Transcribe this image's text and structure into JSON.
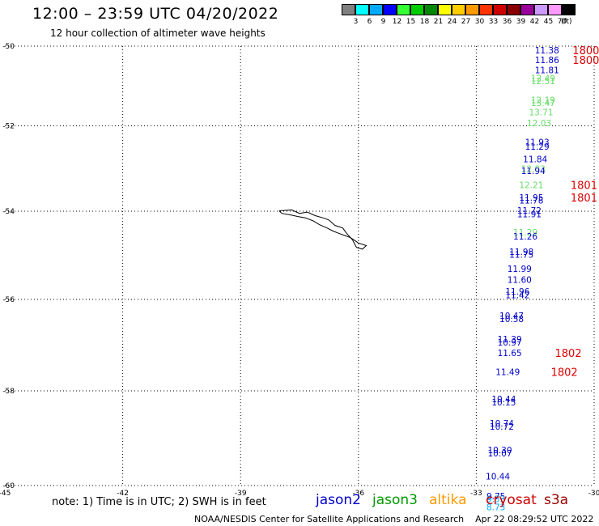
{
  "header": {
    "title": "12:00 – 23:59 UTC 04/20/2022",
    "subtitle": "12 hour collection of altimeter wave heights"
  },
  "legend": {
    "swatches": [
      {
        "label": "3",
        "color": "#808080"
      },
      {
        "label": "6",
        "color": "#00ffff"
      },
      {
        "label": "9",
        "color": "#00aaff"
      },
      {
        "label": "12",
        "color": "#0000ff"
      },
      {
        "label": "15",
        "color": "#33ff33"
      },
      {
        "label": "18",
        "color": "#00cc00"
      },
      {
        "label": "21",
        "color": "#008800"
      },
      {
        "label": "24",
        "color": "#ffff00"
      },
      {
        "label": "27",
        "color": "#ffcc00"
      },
      {
        "label": "30",
        "color": "#ff9900"
      },
      {
        "label": "33",
        "color": "#ff3300"
      },
      {
        "label": "36",
        "color": "#cc0000"
      },
      {
        "label": "39",
        "color": "#880000"
      },
      {
        "label": "42",
        "color": "#990099"
      },
      {
        "label": "45",
        "color": "#cc99ff"
      },
      {
        "label": "70",
        "color": "#ff99ff"
      },
      {
        "label": "",
        "color": "#000000"
      }
    ],
    "unit": "(ft)"
  },
  "footer": {
    "note": "note: 1) Time is in UTC; 2) SWH is in feet",
    "satellites": [
      {
        "name": "jason2",
        "color": "#0000cc"
      },
      {
        "name": "jason3",
        "color": "#009900"
      },
      {
        "name": "altika",
        "color": "#ff9900"
      },
      {
        "name": "cryosat",
        "color": "#cc0000"
      },
      {
        "name": "s3a",
        "color": "#990000"
      }
    ],
    "credit": "NOAA/NESDIS Center for Satellite Applications and Research    Apr 22 08:29:52 UTC 2022"
  },
  "chart_data": {
    "type": "scatter",
    "xlim": [
      -45,
      -30
    ],
    "ylim": [
      -60,
      -50
    ],
    "x_ticks": [
      -45,
      -42,
      -39,
      -36,
      -33,
      -30
    ],
    "y_ticks": [
      -50,
      -52,
      -54,
      -56,
      -58,
      -60
    ],
    "x_tick_labels": [
      "-45",
      "-42",
      "-39",
      "-36",
      "-33",
      "-30"
    ],
    "y_tick_labels": [
      "-50",
      "-52",
      "-54",
      "-56",
      "-58",
      "-60"
    ],
    "grid": true,
    "points": [
      {
        "x": -31.2,
        "y": -50.1,
        "label": "11.38",
        "color": "#0000cc"
      },
      {
        "x": -31.2,
        "y": -50.35,
        "label": "11.86",
        "color": "#0000cc"
      },
      {
        "x": -31.2,
        "y": -50.6,
        "label": "11.81",
        "color": "#0000cc"
      },
      {
        "x": -31.3,
        "y": -50.8,
        "label": "12.49",
        "color": "#66dd66"
      },
      {
        "x": -31.3,
        "y": -50.87,
        "label": "12.51",
        "color": "#66dd66"
      },
      {
        "x": -31.3,
        "y": -51.35,
        "label": "12.19",
        "color": "#66dd66"
      },
      {
        "x": -31.3,
        "y": -51.42,
        "label": "13.47",
        "color": "#66dd66"
      },
      {
        "x": -31.35,
        "y": -51.65,
        "label": "13.71",
        "color": "#66dd66"
      },
      {
        "x": -31.4,
        "y": -51.93,
        "label": "12.03",
        "color": "#66dd66"
      },
      {
        "x": -31.45,
        "y": -52.38,
        "label": "11.93",
        "color": "#0000cc"
      },
      {
        "x": -31.45,
        "y": -52.48,
        "label": "11.29",
        "color": "#0000cc"
      },
      {
        "x": -31.5,
        "y": -52.78,
        "label": "11.84",
        "color": "#0000cc"
      },
      {
        "x": -31.55,
        "y": -53.0,
        "label": "12.03",
        "color": "#66dd66"
      },
      {
        "x": -31.55,
        "y": -53.05,
        "label": "11.94",
        "color": "#0000cc"
      },
      {
        "x": -31.6,
        "y": -53.38,
        "label": "12.21",
        "color": "#66dd66"
      },
      {
        "x": -31.6,
        "y": -53.68,
        "label": "11.95",
        "color": "#0000cc"
      },
      {
        "x": -31.6,
        "y": -53.74,
        "label": "11.78",
        "color": "#0000cc"
      },
      {
        "x": -31.65,
        "y": -53.98,
        "label": "11.72",
        "color": "#0000cc"
      },
      {
        "x": -31.65,
        "y": -54.06,
        "label": "11.91",
        "color": "#0000cc"
      },
      {
        "x": -31.75,
        "y": -54.48,
        "label": "11.29",
        "color": "#66dd66"
      },
      {
        "x": -31.75,
        "y": -54.57,
        "label": "11.26",
        "color": "#0000cc"
      },
      {
        "x": -31.85,
        "y": -54.92,
        "label": "11.98",
        "color": "#0000cc"
      },
      {
        "x": -31.85,
        "y": -54.98,
        "label": "11.75",
        "color": "#0000cc"
      },
      {
        "x": -31.9,
        "y": -55.3,
        "label": "11.99",
        "color": "#0000cc"
      },
      {
        "x": -31.9,
        "y": -55.55,
        "label": "11.60",
        "color": "#0000cc"
      },
      {
        "x": -31.95,
        "y": -55.82,
        "label": "11.96",
        "color": "#0000cc"
      },
      {
        "x": -31.95,
        "y": -55.9,
        "label": "11.42",
        "color": "#0000cc"
      },
      {
        "x": -32.1,
        "y": -56.35,
        "label": "10.47",
        "color": "#0000cc"
      },
      {
        "x": -32.1,
        "y": -56.42,
        "label": "10.58",
        "color": "#0000cc"
      },
      {
        "x": -32.15,
        "y": -56.87,
        "label": "11.39",
        "color": "#0000cc"
      },
      {
        "x": -32.15,
        "y": -56.94,
        "label": "10.97",
        "color": "#0000cc"
      },
      {
        "x": -32.15,
        "y": -57.17,
        "label": "11.65",
        "color": "#0000cc"
      },
      {
        "x": -32.2,
        "y": -57.58,
        "label": "11.49",
        "color": "#0000cc"
      },
      {
        "x": -32.3,
        "y": -58.17,
        "label": "10.44",
        "color": "#0000cc"
      },
      {
        "x": -32.3,
        "y": -58.24,
        "label": "10.15",
        "color": "#0000cc"
      },
      {
        "x": -32.35,
        "y": -58.68,
        "label": "10.74",
        "color": "#0000cc"
      },
      {
        "x": -32.35,
        "y": -58.75,
        "label": "10.72",
        "color": "#0000cc"
      },
      {
        "x": -32.4,
        "y": -59.25,
        "label": "10.30",
        "color": "#0000cc"
      },
      {
        "x": -32.4,
        "y": -59.32,
        "label": "10.07",
        "color": "#0000cc"
      },
      {
        "x": -32.45,
        "y": -59.8,
        "label": "10.44",
        "color": "#0000cc"
      },
      {
        "x": -32.5,
        "y": -60.22,
        "label": "9.75",
        "color": "#0000cc"
      },
      {
        "x": -32.5,
        "y": -60.28,
        "label": "9.53",
        "color": "#00aaff"
      },
      {
        "x": -32.5,
        "y": -60.45,
        "label": "8.73",
        "color": "#00aaff"
      }
    ],
    "annotations": [
      {
        "x": -30.55,
        "y": -50.1,
        "label": "1800",
        "color": "#dd0000"
      },
      {
        "x": -30.55,
        "y": -50.35,
        "label": "1800",
        "color": "#dd0000"
      },
      {
        "x": -30.6,
        "y": -53.38,
        "label": "1801",
        "color": "#dd0000"
      },
      {
        "x": -30.6,
        "y": -53.68,
        "label": "1801",
        "color": "#dd0000"
      },
      {
        "x": -31.0,
        "y": -57.17,
        "label": "1802",
        "color": "#dd0000"
      },
      {
        "x": -31.1,
        "y": -57.58,
        "label": "1802",
        "color": "#dd0000"
      }
    ],
    "coastline": [
      [
        -38.02,
        -53.99
      ],
      [
        -37.7,
        -53.97
      ],
      [
        -37.5,
        -54.05
      ],
      [
        -37.3,
        -54.02
      ],
      [
        -37.1,
        -54.1
      ],
      [
        -36.9,
        -54.15
      ],
      [
        -36.75,
        -54.2
      ],
      [
        -36.6,
        -54.32
      ],
      [
        -36.4,
        -54.38
      ],
      [
        -36.3,
        -54.5
      ],
      [
        -36.15,
        -54.65
      ],
      [
        -36.05,
        -54.82
      ],
      [
        -35.9,
        -54.86
      ],
      [
        -35.8,
        -54.78
      ],
      [
        -36.0,
        -54.72
      ],
      [
        -36.2,
        -54.6
      ],
      [
        -36.35,
        -54.55
      ],
      [
        -36.5,
        -54.5
      ],
      [
        -36.65,
        -54.45
      ],
      [
        -36.8,
        -54.38
      ],
      [
        -37.0,
        -54.3
      ],
      [
        -37.15,
        -54.22
      ],
      [
        -37.35,
        -54.15
      ],
      [
        -37.55,
        -54.12
      ],
      [
        -37.75,
        -54.08
      ],
      [
        -37.95,
        -54.05
      ],
      [
        -38.02,
        -53.99
      ]
    ]
  }
}
